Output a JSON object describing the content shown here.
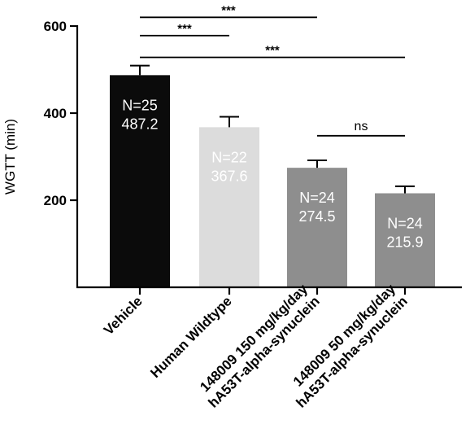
{
  "chart_data": {
    "type": "bar",
    "ylabel": "WGTT (min)",
    "xlabel": "",
    "ylim": [
      0,
      600
    ],
    "yticks": [
      200,
      400,
      600
    ],
    "grid": false,
    "categories": [
      {
        "lines": [
          "Vehicle"
        ]
      },
      {
        "lines": [
          "Human Wildtype"
        ]
      },
      {
        "lines": [
          "148009 150 mg/kg/day",
          "hA53T-alpha-synuclein"
        ]
      },
      {
        "lines": [
          "148009 50 mg/kg/day",
          "hA53T-alpha-synuclein"
        ]
      }
    ],
    "values": [
      487.2,
      367.6,
      274.5,
      215.9
    ],
    "errors": [
      22,
      24,
      17,
      16
    ],
    "bar_labels": [
      [
        "N=25",
        "487.2"
      ],
      [
        "N=22",
        "367.6"
      ],
      [
        "N=24",
        "274.5"
      ],
      [
        "N=24",
        "215.9"
      ]
    ],
    "bar_colors": [
      "#0b0b0b",
      "#dcdcdc",
      "#8e8e8e",
      "#8e8e8e"
    ],
    "significance": [
      {
        "from": 0,
        "to": 2,
        "y": 620,
        "label": "***"
      },
      {
        "from": 0,
        "to": 1,
        "y": 578,
        "label": "***"
      },
      {
        "from": 0,
        "to": 3,
        "y": 528,
        "label": "***"
      },
      {
        "from": 2,
        "to": 3,
        "y": 348,
        "label": "ns"
      }
    ]
  }
}
